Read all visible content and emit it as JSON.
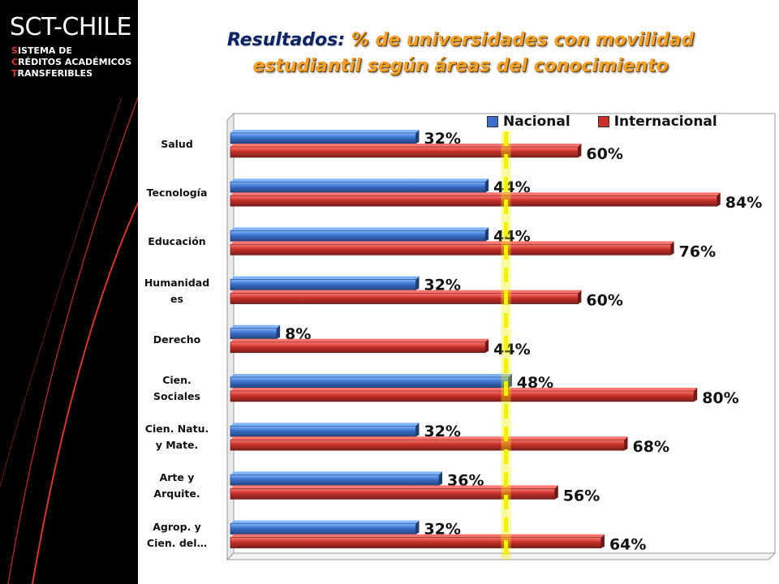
{
  "branding": {
    "logo_text_main": "SCT",
    "logo_text_rest": "-CHILE",
    "subtitle_lines": [
      {
        "cap": "S",
        "rest": "ISTEMA DE"
      },
      {
        "cap": "C",
        "rest": "RÉDITOS ACADÉMICOS"
      },
      {
        "cap": "T",
        "rest": "RANSFERIBLES"
      }
    ]
  },
  "slide_title": {
    "lead": "Resultados:",
    "rest_line1": " % de universidades con movilidad",
    "line2": "estudiantil según áreas del conocimiento"
  },
  "colors": {
    "nacional": "#3a6fcb",
    "internacional": "#c8302a",
    "title_orange": "#f3a128",
    "title_blue": "#0c2466",
    "highlight_yellow": "#f2f200"
  },
  "chart_data": {
    "type": "bar",
    "orientation": "horizontal",
    "categories": [
      [
        "Salud"
      ],
      [
        "Tecnología"
      ],
      [
        "Educación"
      ],
      [
        "Humanidad",
        "es"
      ],
      [
        "Derecho"
      ],
      [
        "Cien.",
        "Sociales"
      ],
      [
        "Cien. Natu.",
        "y Mate."
      ],
      [
        "Arte y",
        "Arquite."
      ],
      [
        "Agrop. y",
        "Cien. del…"
      ]
    ],
    "series": [
      {
        "name": "Nacional",
        "values": [
          32,
          44,
          44,
          32,
          8,
          48,
          32,
          36,
          32
        ],
        "labels": [
          "32%",
          "44%",
          "44%",
          "32%",
          "8%",
          "48%",
          "32%",
          "36%",
          "32%"
        ]
      },
      {
        "name": "Internacional",
        "values": [
          60,
          84,
          76,
          60,
          44,
          80,
          68,
          56,
          64
        ],
        "labels": [
          "60%",
          "84%",
          "76%",
          "60%",
          "44%",
          "80%",
          "68%",
          "56%",
          "64%"
        ]
      }
    ],
    "xlim": [
      0,
      100
    ],
    "legend_position": "top-right",
    "grid": false,
    "reference_line_value": 47
  }
}
